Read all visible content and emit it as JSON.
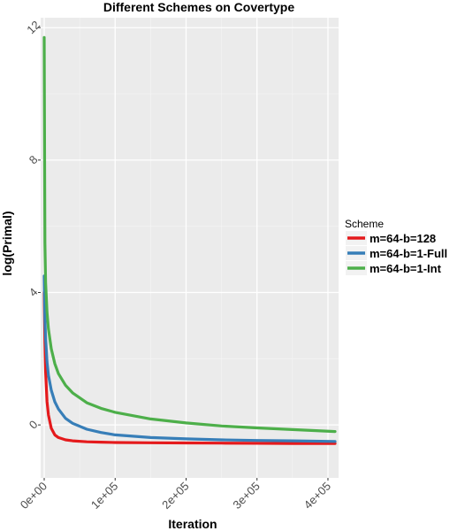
{
  "chart_data": {
    "type": "line",
    "title": "Different Schemes on Covertype",
    "xlabel": "Iteration",
    "ylabel": "log(Primal)",
    "xlim": [
      -5000,
      415000
    ],
    "ylim": [
      -1.6,
      12.3
    ],
    "x_ticks": [
      0,
      100000,
      200000,
      300000,
      400000
    ],
    "x_tick_labels": [
      "0e+00",
      "1e+05",
      "2e+05",
      "3e+05",
      "4e+05"
    ],
    "y_ticks": [
      0,
      4,
      8,
      12
    ],
    "y_tick_labels": [
      "0",
      "4",
      "8",
      "12"
    ],
    "grid": true,
    "legend": {
      "title": "Scheme",
      "position": "right"
    },
    "series": [
      {
        "name": "m=64-b=128",
        "color": "#e41a1c",
        "x": [
          0,
          1000,
          2000,
          4000,
          6000,
          10000,
          15000,
          20000,
          30000,
          40000,
          60000,
          80000,
          100000,
          150000,
          200000,
          250000,
          300000,
          350000,
          410000
        ],
        "y": [
          4.0,
          2.5,
          1.6,
          0.7,
          0.3,
          -0.1,
          -0.3,
          -0.38,
          -0.45,
          -0.48,
          -0.51,
          -0.52,
          -0.53,
          -0.54,
          -0.545,
          -0.55,
          -0.555,
          -0.56,
          -0.56
        ]
      },
      {
        "name": "m=64-b=1-Full",
        "color": "#377eb8",
        "x": [
          0,
          1000,
          2000,
          4000,
          6000,
          10000,
          15000,
          20000,
          30000,
          40000,
          60000,
          80000,
          100000,
          150000,
          200000,
          250000,
          300000,
          350000,
          410000
        ],
        "y": [
          4.5,
          3.2,
          2.6,
          1.9,
          1.5,
          1.05,
          0.7,
          0.48,
          0.2,
          0.05,
          -0.13,
          -0.23,
          -0.3,
          -0.38,
          -0.42,
          -0.45,
          -0.47,
          -0.48,
          -0.5
        ]
      },
      {
        "name": "m=64-b=1-Int",
        "color": "#4daf4a",
        "x": [
          0,
          1000,
          2000,
          4000,
          6000,
          10000,
          15000,
          20000,
          30000,
          40000,
          60000,
          80000,
          100000,
          150000,
          200000,
          250000,
          300000,
          350000,
          410000
        ],
        "y": [
          11.7,
          5.5,
          4.3,
          3.4,
          2.9,
          2.3,
          1.85,
          1.55,
          1.2,
          0.97,
          0.67,
          0.5,
          0.38,
          0.18,
          0.06,
          -0.03,
          -0.09,
          -0.14,
          -0.2
        ]
      }
    ]
  }
}
